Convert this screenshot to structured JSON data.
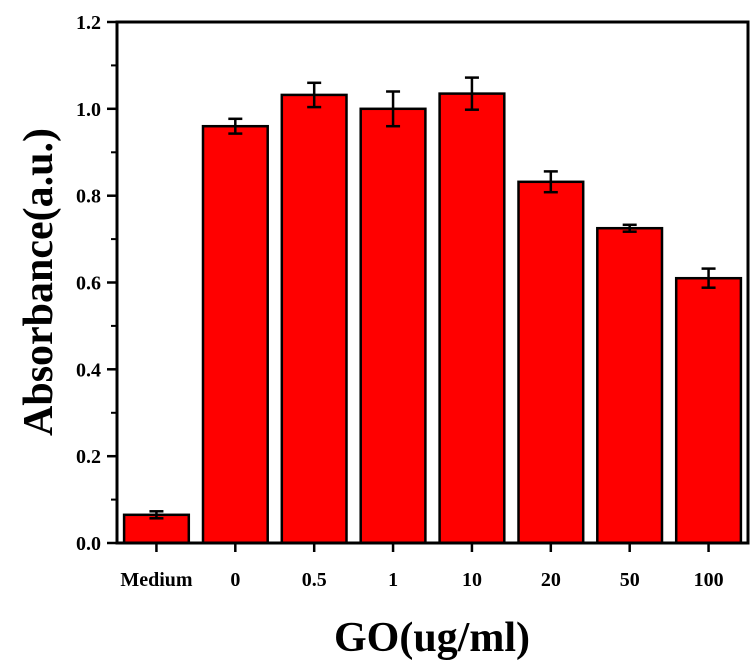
{
  "chart_data": {
    "type": "bar",
    "title": "",
    "xlabel": "GO(ug/ml)",
    "ylabel": "Absorbance(a.u.)",
    "categories": [
      "Medium",
      "0",
      "0.5",
      "1",
      "10",
      "20",
      "50",
      "100"
    ],
    "series": [
      {
        "values": [
          0.065,
          0.96,
          1.032,
          1.0,
          1.035,
          0.832,
          0.725,
          0.61
        ],
        "errors": [
          0.008,
          0.017,
          0.028,
          0.04,
          0.037,
          0.024,
          0.008,
          0.022
        ]
      }
    ],
    "ylim": [
      0,
      1.2
    ],
    "yticks": [
      "0.0",
      "0.2",
      "0.4",
      "0.6",
      "0.8",
      "1.0",
      "1.2"
    ],
    "bar_color": "#ff0000",
    "edge_color": "#000000",
    "grid": false,
    "legend": "none"
  }
}
